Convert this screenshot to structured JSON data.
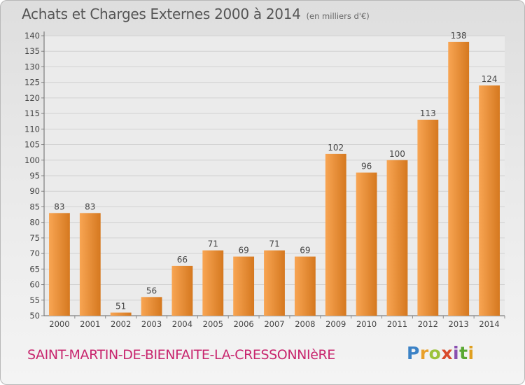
{
  "header": {
    "title": "Achats et Charges Externes 2000 à 2014",
    "subtitle": "(en milliers d'€)"
  },
  "footer": {
    "commune": "SAINT-MARTIN-DE-BIENFAITE-LA-CRESSONNIèRE",
    "brand": "Proxiti"
  },
  "colors": {
    "bar_light": "#f8a553",
    "bar_dark": "#d5781f",
    "commune_text": "#c8266e",
    "grid": "#d2d2d2"
  },
  "chart_data": {
    "type": "bar",
    "title": "Achats et Charges Externes 2000 à 2014",
    "subtitle": "(en milliers d'€)",
    "xlabel": "",
    "ylabel": "",
    "categories": [
      "2000",
      "2001",
      "2002",
      "2003",
      "2004",
      "2005",
      "2006",
      "2007",
      "2008",
      "2009",
      "2010",
      "2011",
      "2012",
      "2013",
      "2014"
    ],
    "values": [
      83,
      83,
      51,
      56,
      66,
      71,
      69,
      71,
      69,
      102,
      96,
      100,
      113,
      138,
      124
    ],
    "ylim": [
      50,
      140
    ],
    "yticks": [
      50,
      55,
      60,
      65,
      70,
      75,
      80,
      85,
      90,
      95,
      100,
      105,
      110,
      115,
      120,
      125,
      130,
      135,
      140
    ],
    "grid": true,
    "data_labels": true
  }
}
